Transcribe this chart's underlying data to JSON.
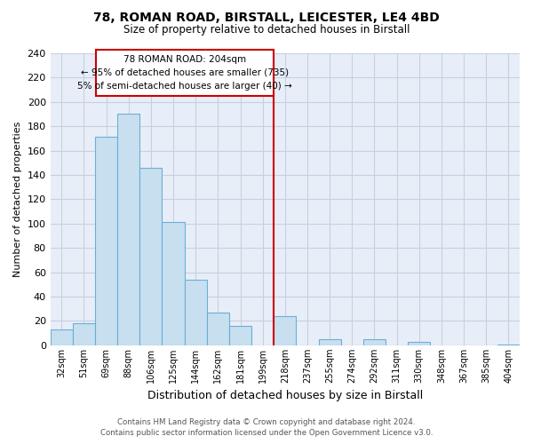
{
  "title": "78, ROMAN ROAD, BIRSTALL, LEICESTER, LE4 4BD",
  "subtitle": "Size of property relative to detached houses in Birstall",
  "xlabel": "Distribution of detached houses by size in Birstall",
  "ylabel": "Number of detached properties",
  "bin_labels": [
    "32sqm",
    "51sqm",
    "69sqm",
    "88sqm",
    "106sqm",
    "125sqm",
    "144sqm",
    "162sqm",
    "181sqm",
    "199sqm",
    "218sqm",
    "237sqm",
    "255sqm",
    "274sqm",
    "292sqm",
    "311sqm",
    "330sqm",
    "348sqm",
    "367sqm",
    "385sqm",
    "404sqm"
  ],
  "bar_heights": [
    13,
    18,
    171,
    190,
    146,
    101,
    54,
    27,
    16,
    0,
    24,
    0,
    5,
    0,
    5,
    0,
    3,
    0,
    0,
    0,
    1
  ],
  "bar_color": "#c8dff0",
  "bar_edge_color": "#6aafd6",
  "vline_color": "#cc0000",
  "annotation_title": "78 ROMAN ROAD: 204sqm",
  "annotation_line1": "← 95% of detached houses are smaller (735)",
  "annotation_line2": "5% of semi-detached houses are larger (40) →",
  "annotation_box_color": "#ffffff",
  "annotation_box_edge": "#cc0000",
  "ylim": [
    0,
    240
  ],
  "yticks": [
    0,
    20,
    40,
    60,
    80,
    100,
    120,
    140,
    160,
    180,
    200,
    220,
    240
  ],
  "footer_line1": "Contains HM Land Registry data © Crown copyright and database right 2024.",
  "footer_line2": "Contains public sector information licensed under the Open Government Licence v3.0.",
  "bg_color": "#ffffff",
  "plot_bg_color": "#e8eef8",
  "grid_color": "#c8d0e0"
}
